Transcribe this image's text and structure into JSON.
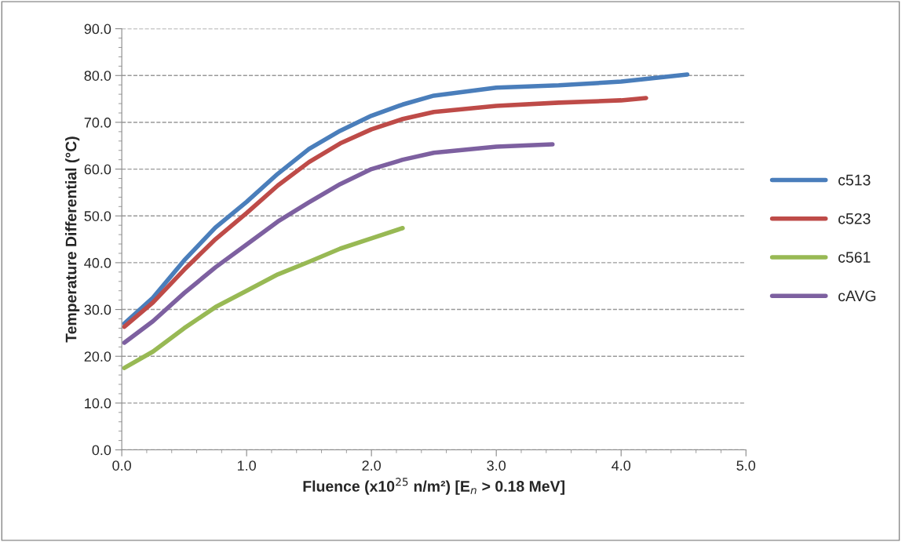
{
  "chart_data": {
    "type": "line",
    "xlabel": "Fluence (x10$^{25}$ n/m²) [E$_{n}$ > 0.18 MeV]",
    "ylabel": "Temperature Differential (°C)",
    "series": [
      {
        "name": "c513",
        "color": "#4a7ebb",
        "x": [
          0.02,
          0.25,
          0.5,
          0.75,
          1.0,
          1.25,
          1.5,
          1.75,
          2.0,
          2.25,
          2.5,
          3.0,
          3.5,
          4.0,
          4.53
        ],
        "values": [
          27.0,
          32.5,
          40.5,
          47.5,
          53.0,
          59.0,
          64.3,
          68.2,
          71.4,
          73.8,
          75.7,
          77.4,
          77.9,
          78.7,
          80.2
        ]
      },
      {
        "name": "c523",
        "color": "#be4b48",
        "x": [
          0.02,
          0.25,
          0.5,
          0.75,
          1.0,
          1.25,
          1.5,
          1.75,
          2.0,
          2.25,
          2.5,
          3.0,
          3.5,
          4.0,
          4.2
        ],
        "values": [
          26.3,
          31.5,
          38.5,
          45.0,
          50.6,
          56.5,
          61.5,
          65.5,
          68.5,
          70.7,
          72.2,
          73.5,
          74.2,
          74.7,
          75.2
        ]
      },
      {
        "name": "c561",
        "color": "#98b954",
        "x": [
          0.02,
          0.25,
          0.5,
          0.75,
          1.0,
          1.25,
          1.5,
          1.75,
          2.0,
          2.25
        ],
        "values": [
          17.5,
          21.0,
          26.0,
          30.5,
          34.0,
          37.5,
          40.2,
          43.0,
          45.2,
          47.4
        ]
      },
      {
        "name": "cAVG",
        "color": "#7d60a0",
        "x": [
          0.02,
          0.25,
          0.5,
          0.75,
          1.0,
          1.25,
          1.5,
          1.75,
          2.0,
          2.25,
          2.5,
          3.0,
          3.45
        ],
        "values": [
          22.9,
          27.5,
          33.5,
          39.0,
          43.9,
          48.8,
          52.9,
          56.8,
          60.0,
          62.0,
          63.5,
          64.8,
          65.3
        ]
      }
    ],
    "xlim": [
      0,
      5
    ],
    "xticks": [
      {
        "value": 0,
        "label": "0.0"
      },
      {
        "value": 1,
        "label": "1.0"
      },
      {
        "value": 2,
        "label": "2.0"
      },
      {
        "value": 3,
        "label": "3.0"
      },
      {
        "value": 4,
        "label": "4.0"
      },
      {
        "value": 5,
        "label": "5.0"
      }
    ],
    "ylim": [
      0,
      90
    ],
    "yticks": [
      {
        "value": 0,
        "label": "0.0"
      },
      {
        "value": 10,
        "label": "10.0"
      },
      {
        "value": 20,
        "label": "20.0"
      },
      {
        "value": 30,
        "label": "30.0"
      },
      {
        "value": 40,
        "label": "40.0"
      },
      {
        "value": 50,
        "label": "50.0"
      },
      {
        "value": 60,
        "label": "60.0"
      },
      {
        "value": 70,
        "label": "70.0"
      },
      {
        "value": 80,
        "label": "80.0"
      },
      {
        "value": 90,
        "label": "90.0"
      }
    ],
    "grid": "y",
    "legend": "right",
    "marker": "none",
    "line_style": "solid"
  }
}
